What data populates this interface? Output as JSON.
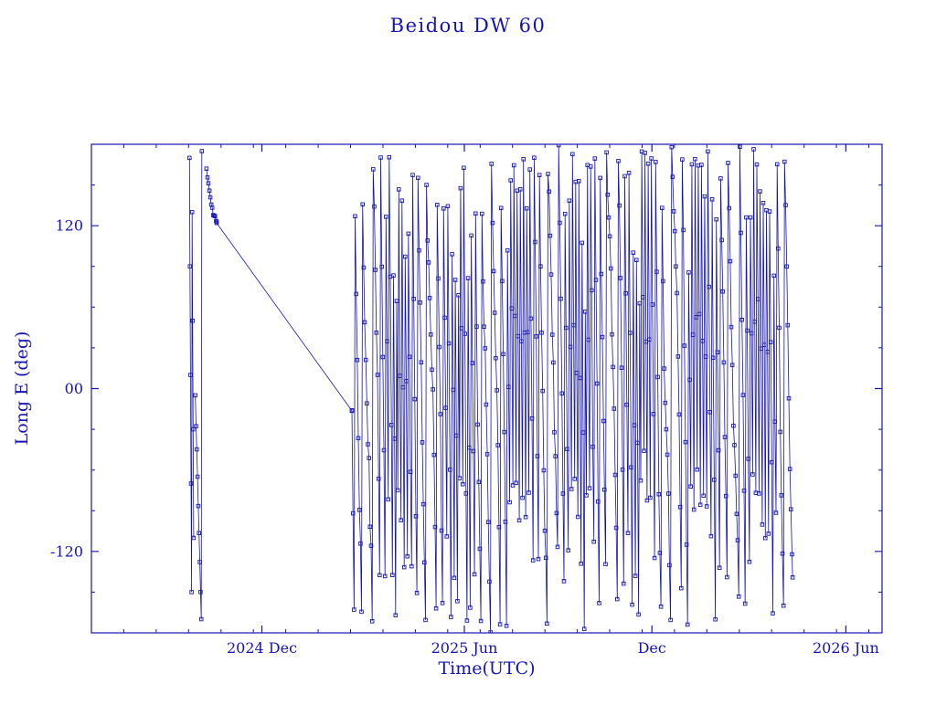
{
  "figure": {
    "title": "Beidou DW 60",
    "background": "#ffffff"
  },
  "chart_data": {
    "type": "line",
    "title": "Beidou DW 60",
    "xlabel": "Time(UTC)",
    "ylabel": "Long E (deg)",
    "marker": "open-square",
    "line_color": "#1414b4",
    "grid": false,
    "legend": null,
    "x_axis_note": "days measured from plot left edge (approx late Jun 2024)",
    "x_domain": [
      0,
      742
    ],
    "ylim": [
      -180,
      180
    ],
    "x_ticks": [
      {
        "t": 160,
        "label": "2024 Dec"
      },
      {
        "t": 350,
        "label": "2025 Jun"
      },
      {
        "t": 526,
        "label": "Dec"
      },
      {
        "t": 708,
        "label": "2026 Jun"
      }
    ],
    "y_ticks": [
      {
        "v": 120,
        "label": "120"
      },
      {
        "v": 0,
        "label": "00"
      },
      {
        "v": -120,
        "label": "-120"
      }
    ],
    "x_minor_step": 30.4,
    "y_minor_step": 30,
    "series_description": "Sub-satellite longitude (deg E) of Beidou DW 60 vs time; fast westward drift wraps at +/-180 deg producing dense near-vertical traces from early 2025 onward",
    "segments": [
      {
        "t0": 92,
        "t1": 96,
        "lon0": 170,
        "rate": -160,
        "sample": 0.5,
        "noise": 0
      },
      {
        "t0": 97.5,
        "t1": 103.6,
        "lon0": -5,
        "rate": -29,
        "sample": 0.7,
        "noise": 6
      },
      {
        "t0": 108,
        "t1": 117.5,
        "lon0": 162,
        "rate": -4.2,
        "sample": 0.9,
        "noise": 4
      },
      {
        "t0": 117.5,
        "t1": 244.5,
        "lon0": 122,
        "rate": -1.09,
        "sample": 127,
        "noise": 0
      },
      {
        "t0": 244.5,
        "t1": 658,
        "lon0": -16,
        "rate": -78,
        "sample": 1,
        "noise": 22,
        "mod_amp": 48,
        "mod_period": 57
      }
    ]
  }
}
